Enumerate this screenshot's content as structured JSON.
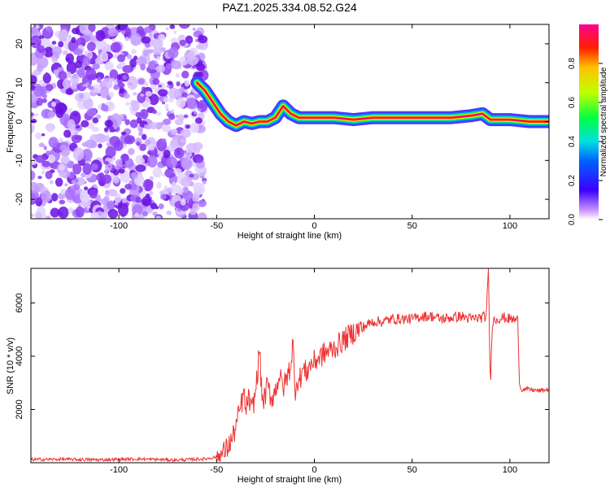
{
  "figure": {
    "title": "PAZ1.2025.334.08.52.G24"
  },
  "chart_data": [
    {
      "type": "heatmap",
      "title": "PAZ1.2025.334.08.52.G24",
      "xlabel": "Height of straight line (km)",
      "ylabel": "Frequency (Hz)",
      "xlim": [
        -145,
        120
      ],
      "ylim": [
        -25,
        25
      ],
      "x_ticks": [
        -100,
        -50,
        0,
        50,
        100
      ],
      "y_ticks": [
        -20,
        -10,
        0,
        10,
        20
      ],
      "noise_region": {
        "x_from": -145,
        "x_to": -56,
        "description_value": "scattered low amplitude speckle"
      },
      "ridge": {
        "x": [
          -60,
          -56,
          -52,
          -48,
          -44,
          -40,
          -36,
          -32,
          -28,
          -24,
          -20,
          -16,
          -12,
          -8,
          -4,
          0,
          10,
          20,
          30,
          40,
          50,
          60,
          70,
          80,
          86,
          90,
          100,
          110,
          120
        ],
        "y": [
          10,
          8,
          5,
          2,
          0,
          -1,
          0,
          -0.5,
          0,
          0,
          1,
          4,
          2,
          1,
          1,
          1,
          1,
          0.5,
          1,
          1,
          1,
          1,
          1,
          1.5,
          2,
          0.5,
          0.5,
          0,
          0
        ]
      },
      "colorbar": {
        "label": "Normalized spectral amplitude",
        "range": [
          0.0,
          1.0
        ],
        "ticks": [
          "0.0",
          "0.2",
          "0.4",
          "0.6",
          "0.8"
        ]
      }
    },
    {
      "type": "line",
      "xlabel": "Height of straight line (km)",
      "ylabel": "SNR (10 * v/v)",
      "xlim": [
        -145,
        120
      ],
      "ylim": [
        0,
        7300
      ],
      "x_ticks": [
        -100,
        -50,
        0,
        50,
        100
      ],
      "y_ticks": [
        2000,
        4000,
        6000
      ],
      "color": "#ee3333",
      "series": [
        {
          "name": "SNR",
          "x": [
            -145,
            -130,
            -110,
            -90,
            -70,
            -55,
            -48,
            -45,
            -42,
            -40,
            -38,
            -36,
            -35,
            -34,
            -32,
            -30,
            -29,
            -28,
            -27,
            -26,
            -25,
            -24,
            -22,
            -20,
            -18,
            -16,
            -14,
            -12,
            -11,
            -10,
            -9,
            -8,
            -6,
            -4,
            -2,
            0,
            5,
            10,
            15,
            20,
            25,
            30,
            35,
            40,
            45,
            50,
            55,
            60,
            65,
            70,
            75,
            80,
            85,
            88,
            89,
            90,
            91,
            93,
            97,
            100,
            104,
            105,
            106,
            110,
            115,
            120
          ],
          "y": [
            120,
            130,
            110,
            140,
            100,
            150,
            250,
            500,
            900,
            1400,
            2000,
            2600,
            1800,
            2500,
            1900,
            2700,
            3500,
            4300,
            2600,
            2300,
            2600,
            2900,
            2400,
            2700,
            3300,
            2800,
            3200,
            3700,
            4600,
            2600,
            3200,
            3000,
            3500,
            3400,
            3700,
            3800,
            4100,
            4300,
            4600,
            4900,
            5100,
            5300,
            5300,
            5400,
            5400,
            5400,
            5500,
            5500,
            5400,
            5450,
            5500,
            5400,
            5450,
            5500,
            7400,
            2800,
            5300,
            5400,
            5450,
            5400,
            5350,
            2900,
            2750,
            2750,
            2700,
            2750
          ]
        }
      ]
    }
  ]
}
